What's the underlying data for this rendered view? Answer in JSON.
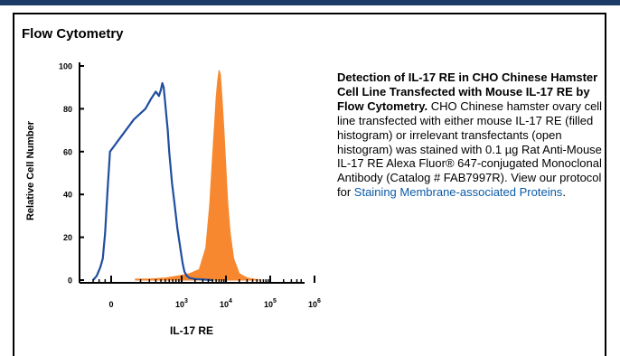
{
  "section": {
    "title": "Flow Cytometry"
  },
  "caption": {
    "bold": "Detection of IL-17 RE in CHO Chinese Hamster Cell Line Transfected with Mouse IL-17 RE by Flow Cytometry.",
    "body": " CHO Chinese hamster ovary cell line transfected with either mouse IL-17 RE (filled histogram) or irrelevant transfectants (open histogram) was stained with 0.1 µg Rat Anti-Mouse IL-17 RE Alexa Fluor® 647-conjugated Monoclonal Antibody (Catalog # FAB7997R).  View our protocol for ",
    "link": "Staining Membrane-associated Proteins",
    "end": "."
  },
  "colors": {
    "filled": "#f7882f",
    "open": "#1f4ea0",
    "header_rule": "#1c3b66",
    "link": "#0b5aa8"
  },
  "chart_data": {
    "type": "area",
    "xlabel": "IL-17 RE",
    "ylabel": "Relative Cell Number",
    "ylim": [
      0,
      100
    ],
    "x_scale": "biexponential",
    "y_ticks": [
      {
        "value": 0,
        "label": "0"
      },
      {
        "value": 20,
        "label": "20"
      },
      {
        "value": 40,
        "label": "40"
      },
      {
        "value": 60,
        "label": "60"
      },
      {
        "value": 80,
        "label": "80"
      },
      {
        "value": 100,
        "label": "100"
      }
    ],
    "x_ticks": [
      {
        "value": 0,
        "base": "0",
        "exp": ""
      },
      {
        "value": 1000,
        "base": "10",
        "exp": "3"
      },
      {
        "value": 10000,
        "base": "10",
        "exp": "4"
      },
      {
        "value": 100000,
        "base": "10",
        "exp": "5"
      },
      {
        "value": 1000000,
        "base": "10",
        "exp": "6"
      }
    ],
    "series": [
      {
        "style": "filled",
        "x": [
          60,
          200,
          500,
          900,
          1500,
          2500,
          3500,
          4300,
          5000,
          5500,
          6000,
          6500,
          7000,
          7500,
          8200,
          9000,
          10000,
          11000,
          12500,
          15000,
          20000,
          30000,
          60000
        ],
        "y": [
          0.5,
          0.5,
          1,
          2,
          3,
          5,
          15,
          35,
          58,
          72,
          85,
          93,
          98,
          96,
          84,
          70,
          52,
          36,
          22,
          10,
          3,
          1,
          0
        ]
      },
      {
        "style": "open",
        "x": [
          -1500,
          -1200,
          -900,
          -700,
          -500,
          -300,
          -100,
          50,
          150,
          230,
          300,
          360,
          400,
          430,
          460,
          490,
          520,
          560,
          600,
          680,
          760,
          850,
          950,
          1050,
          1150,
          1300,
          1500,
          2000,
          3000,
          5000
        ],
        "y": [
          0,
          2,
          6,
          10,
          22,
          42,
          60,
          75,
          80,
          85,
          88,
          86,
          89,
          92,
          90,
          84,
          78,
          70,
          60,
          45,
          35,
          24,
          15,
          8,
          4,
          2,
          1,
          0.5,
          0.3,
          0
        ]
      }
    ]
  }
}
